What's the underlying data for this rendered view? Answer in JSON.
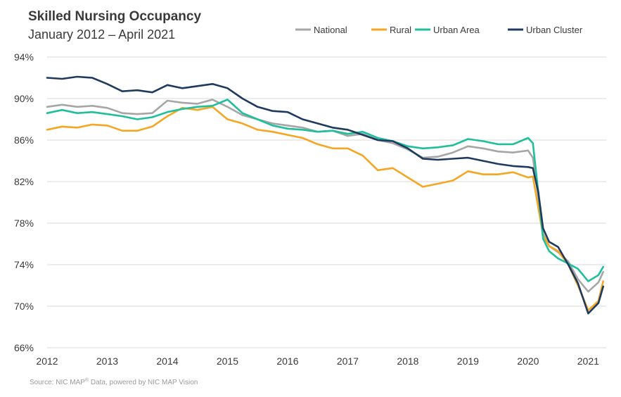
{
  "chart_data": {
    "type": "line",
    "title": "Skilled Nursing Occupancy",
    "subtitle": "January 2012 – April 2021",
    "source_prefix": "Source:  NIC MAP",
    "source_sup": "®",
    "source_suffix": " Data, powered by NIC MAP Vision",
    "xlabel": "",
    "ylabel": "",
    "xlim": [
      2012.0,
      2021.3
    ],
    "ylim": [
      66,
      94
    ],
    "x_ticks": [
      2012,
      2013,
      2014,
      2015,
      2016,
      2017,
      2018,
      2019,
      2020,
      2021
    ],
    "y_ticks": [
      66,
      70,
      74,
      78,
      82,
      86,
      90,
      94
    ],
    "y_tick_labels": [
      "66%",
      "70%",
      "74%",
      "78%",
      "82%",
      "86%",
      "90%",
      "94%"
    ],
    "grid": "horizontal",
    "legend_position": "top-right",
    "series": [
      {
        "name": "National",
        "color": "#a6a6a6",
        "points": [
          [
            2012.0,
            89.2
          ],
          [
            2012.25,
            89.4
          ],
          [
            2012.5,
            89.2
          ],
          [
            2012.75,
            89.3
          ],
          [
            2013.0,
            89.1
          ],
          [
            2013.25,
            88.6
          ],
          [
            2013.5,
            88.5
          ],
          [
            2013.75,
            88.6
          ],
          [
            2014.0,
            89.8
          ],
          [
            2014.25,
            89.6
          ],
          [
            2014.5,
            89.5
          ],
          [
            2014.75,
            89.9
          ],
          [
            2015.0,
            89.2
          ],
          [
            2015.25,
            88.4
          ],
          [
            2015.5,
            88.0
          ],
          [
            2015.75,
            87.6
          ],
          [
            2016.0,
            87.4
          ],
          [
            2016.25,
            87.2
          ],
          [
            2016.5,
            86.8
          ],
          [
            2016.75,
            86.9
          ],
          [
            2017.0,
            86.4
          ],
          [
            2017.25,
            86.6
          ],
          [
            2017.5,
            86.0
          ],
          [
            2017.75,
            85.7
          ],
          [
            2018.0,
            85.1
          ],
          [
            2018.25,
            84.3
          ],
          [
            2018.5,
            84.4
          ],
          [
            2018.75,
            84.8
          ],
          [
            2019.0,
            85.4
          ],
          [
            2019.25,
            85.2
          ],
          [
            2019.5,
            84.9
          ],
          [
            2019.75,
            84.8
          ],
          [
            2020.0,
            85.0
          ],
          [
            2020.08,
            84.3
          ],
          [
            2020.17,
            80.5
          ],
          [
            2020.25,
            77.0
          ],
          [
            2020.35,
            75.8
          ],
          [
            2020.5,
            75.2
          ],
          [
            2020.67,
            74.3
          ],
          [
            2020.83,
            72.6
          ],
          [
            2021.0,
            71.4
          ],
          [
            2021.17,
            72.3
          ],
          [
            2021.25,
            73.3
          ]
        ]
      },
      {
        "name": "Rural",
        "color": "#f5a623",
        "points": [
          [
            2012.0,
            87.0
          ],
          [
            2012.25,
            87.3
          ],
          [
            2012.5,
            87.2
          ],
          [
            2012.75,
            87.5
          ],
          [
            2013.0,
            87.4
          ],
          [
            2013.25,
            86.9
          ],
          [
            2013.5,
            86.9
          ],
          [
            2013.75,
            87.3
          ],
          [
            2014.0,
            88.3
          ],
          [
            2014.25,
            89.1
          ],
          [
            2014.5,
            88.9
          ],
          [
            2014.75,
            89.2
          ],
          [
            2015.0,
            88.0
          ],
          [
            2015.25,
            87.6
          ],
          [
            2015.5,
            87.0
          ],
          [
            2015.75,
            86.8
          ],
          [
            2016.0,
            86.5
          ],
          [
            2016.25,
            86.2
          ],
          [
            2016.5,
            85.6
          ],
          [
            2016.75,
            85.2
          ],
          [
            2017.0,
            85.2
          ],
          [
            2017.25,
            84.5
          ],
          [
            2017.5,
            83.1
          ],
          [
            2017.75,
            83.3
          ],
          [
            2018.0,
            82.4
          ],
          [
            2018.25,
            81.5
          ],
          [
            2018.5,
            81.8
          ],
          [
            2018.75,
            82.1
          ],
          [
            2019.0,
            83.0
          ],
          [
            2019.25,
            82.7
          ],
          [
            2019.5,
            82.7
          ],
          [
            2019.75,
            82.9
          ],
          [
            2020.0,
            82.4
          ],
          [
            2020.08,
            82.5
          ],
          [
            2020.17,
            79.5
          ],
          [
            2020.25,
            76.8
          ],
          [
            2020.35,
            75.8
          ],
          [
            2020.5,
            75.3
          ],
          [
            2020.67,
            74.0
          ],
          [
            2020.83,
            72.0
          ],
          [
            2021.0,
            69.6
          ],
          [
            2021.17,
            70.5
          ],
          [
            2021.25,
            72.4
          ]
        ]
      },
      {
        "name": "Urban Area",
        "color": "#1fbf9c",
        "points": [
          [
            2012.0,
            88.6
          ],
          [
            2012.25,
            88.9
          ],
          [
            2012.5,
            88.6
          ],
          [
            2012.75,
            88.7
          ],
          [
            2013.0,
            88.5
          ],
          [
            2013.25,
            88.3
          ],
          [
            2013.5,
            88.0
          ],
          [
            2013.75,
            88.2
          ],
          [
            2014.0,
            88.7
          ],
          [
            2014.25,
            89.0
          ],
          [
            2014.5,
            89.2
          ],
          [
            2014.75,
            89.3
          ],
          [
            2015.0,
            89.9
          ],
          [
            2015.25,
            88.6
          ],
          [
            2015.5,
            88.0
          ],
          [
            2015.75,
            87.4
          ],
          [
            2016.0,
            87.1
          ],
          [
            2016.25,
            87.0
          ],
          [
            2016.5,
            86.8
          ],
          [
            2016.75,
            86.9
          ],
          [
            2017.0,
            86.6
          ],
          [
            2017.25,
            86.8
          ],
          [
            2017.5,
            86.2
          ],
          [
            2017.75,
            85.9
          ],
          [
            2018.0,
            85.4
          ],
          [
            2018.25,
            85.2
          ],
          [
            2018.5,
            85.3
          ],
          [
            2018.75,
            85.5
          ],
          [
            2019.0,
            86.1
          ],
          [
            2019.25,
            85.9
          ],
          [
            2019.5,
            85.6
          ],
          [
            2019.75,
            85.6
          ],
          [
            2020.0,
            86.2
          ],
          [
            2020.08,
            85.7
          ],
          [
            2020.17,
            81.0
          ],
          [
            2020.25,
            76.5
          ],
          [
            2020.35,
            75.3
          ],
          [
            2020.5,
            74.6
          ],
          [
            2020.67,
            74.1
          ],
          [
            2020.83,
            73.6
          ],
          [
            2021.0,
            72.4
          ],
          [
            2021.17,
            73.0
          ],
          [
            2021.25,
            73.8
          ]
        ]
      },
      {
        "name": "Urban Cluster",
        "color": "#1f3a5f",
        "points": [
          [
            2012.0,
            92.0
          ],
          [
            2012.25,
            91.9
          ],
          [
            2012.5,
            92.1
          ],
          [
            2012.75,
            92.0
          ],
          [
            2013.0,
            91.4
          ],
          [
            2013.25,
            90.7
          ],
          [
            2013.5,
            90.8
          ],
          [
            2013.75,
            90.6
          ],
          [
            2014.0,
            91.3
          ],
          [
            2014.25,
            91.0
          ],
          [
            2014.5,
            91.2
          ],
          [
            2014.75,
            91.4
          ],
          [
            2015.0,
            91.0
          ],
          [
            2015.25,
            90.0
          ],
          [
            2015.5,
            89.2
          ],
          [
            2015.75,
            88.8
          ],
          [
            2016.0,
            88.7
          ],
          [
            2016.25,
            88.0
          ],
          [
            2016.5,
            87.6
          ],
          [
            2016.75,
            87.2
          ],
          [
            2017.0,
            87.0
          ],
          [
            2017.25,
            86.5
          ],
          [
            2017.5,
            86.0
          ],
          [
            2017.75,
            85.9
          ],
          [
            2018.0,
            85.2
          ],
          [
            2018.25,
            84.2
          ],
          [
            2018.5,
            84.1
          ],
          [
            2018.75,
            84.2
          ],
          [
            2019.0,
            84.3
          ],
          [
            2019.25,
            84.0
          ],
          [
            2019.5,
            83.7
          ],
          [
            2019.75,
            83.5
          ],
          [
            2020.0,
            83.4
          ],
          [
            2020.08,
            83.3
          ],
          [
            2020.17,
            81.0
          ],
          [
            2020.25,
            77.5
          ],
          [
            2020.35,
            76.2
          ],
          [
            2020.5,
            75.7
          ],
          [
            2020.67,
            74.0
          ],
          [
            2020.83,
            72.2
          ],
          [
            2021.0,
            69.3
          ],
          [
            2021.17,
            70.3
          ],
          [
            2021.25,
            71.9
          ]
        ]
      }
    ]
  }
}
